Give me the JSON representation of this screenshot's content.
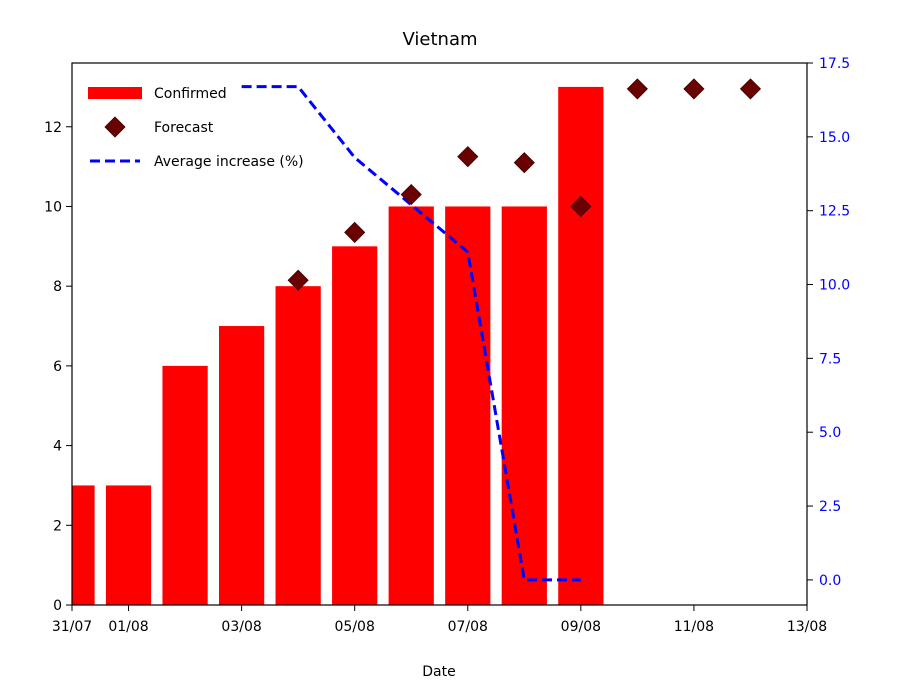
{
  "chart_data": {
    "type": "bar",
    "title": "Vietnam",
    "xlabel": "Date",
    "ylabel": "",
    "ylabel_right": "",
    "x_range": [
      "2020-07-31",
      "2020-08-13"
    ],
    "x_ticks": [
      {
        "date": "2020-07-31",
        "label": "31/07"
      },
      {
        "date": "2020-08-01",
        "label": "01/08"
      },
      {
        "date": "2020-08-03",
        "label": "03/08"
      },
      {
        "date": "2020-08-05",
        "label": "05/08"
      },
      {
        "date": "2020-08-07",
        "label": "07/08"
      },
      {
        "date": "2020-08-09",
        "label": "09/08"
      },
      {
        "date": "2020-08-11",
        "label": "11/08"
      },
      {
        "date": "2020-08-13",
        "label": "13/08"
      }
    ],
    "ylim": [
      0,
      13.6
    ],
    "y_ticks": [
      0,
      2,
      4,
      6,
      8,
      10,
      12
    ],
    "ylim_right": [
      -0.85,
      17.5
    ],
    "y_ticks_right": [
      "0.0",
      "2.5",
      "5.0",
      "7.5",
      "10.0",
      "12.5",
      "15.0",
      "17.5"
    ],
    "legend_position": "top-left",
    "colors": {
      "confirmed": "#ff0000",
      "forecast": "#6b0000",
      "average": "#0000ff",
      "right_axis": "#0000ff"
    },
    "series": [
      {
        "name": "Confirmed",
        "kind": "bar",
        "axis": "left",
        "points": [
          {
            "x": "2020-07-31",
            "y": 3
          },
          {
            "x": "2020-08-01",
            "y": 3
          },
          {
            "x": "2020-08-02",
            "y": 6
          },
          {
            "x": "2020-08-03",
            "y": 7
          },
          {
            "x": "2020-08-04",
            "y": 8
          },
          {
            "x": "2020-08-05",
            "y": 9
          },
          {
            "x": "2020-08-06",
            "y": 10
          },
          {
            "x": "2020-08-07",
            "y": 10
          },
          {
            "x": "2020-08-08",
            "y": 10
          },
          {
            "x": "2020-08-09",
            "y": 13
          }
        ]
      },
      {
        "name": "Forecast",
        "kind": "scatter",
        "axis": "left",
        "points": [
          {
            "x": "2020-08-04",
            "y": 8.15
          },
          {
            "x": "2020-08-05",
            "y": 9.35
          },
          {
            "x": "2020-08-06",
            "y": 10.3
          },
          {
            "x": "2020-08-07",
            "y": 11.25
          },
          {
            "x": "2020-08-08",
            "y": 11.1
          },
          {
            "x": "2020-08-09",
            "y": 10.0
          },
          {
            "x": "2020-08-10",
            "y": 12.95
          },
          {
            "x": "2020-08-11",
            "y": 12.95
          },
          {
            "x": "2020-08-12",
            "y": 12.95
          }
        ]
      },
      {
        "name": "Average increase (%)",
        "kind": "line",
        "axis": "right",
        "points": [
          {
            "x": "2020-08-03",
            "y": 16.7
          },
          {
            "x": "2020-08-04",
            "y": 16.7
          },
          {
            "x": "2020-08-05",
            "y": 14.3
          },
          {
            "x": "2020-08-06",
            "y": 12.7
          },
          {
            "x": "2020-08-07",
            "y": 11.1
          },
          {
            "x": "2020-08-08",
            "y": 0.0
          },
          {
            "x": "2020-08-09",
            "y": 0.0
          }
        ]
      }
    ]
  }
}
